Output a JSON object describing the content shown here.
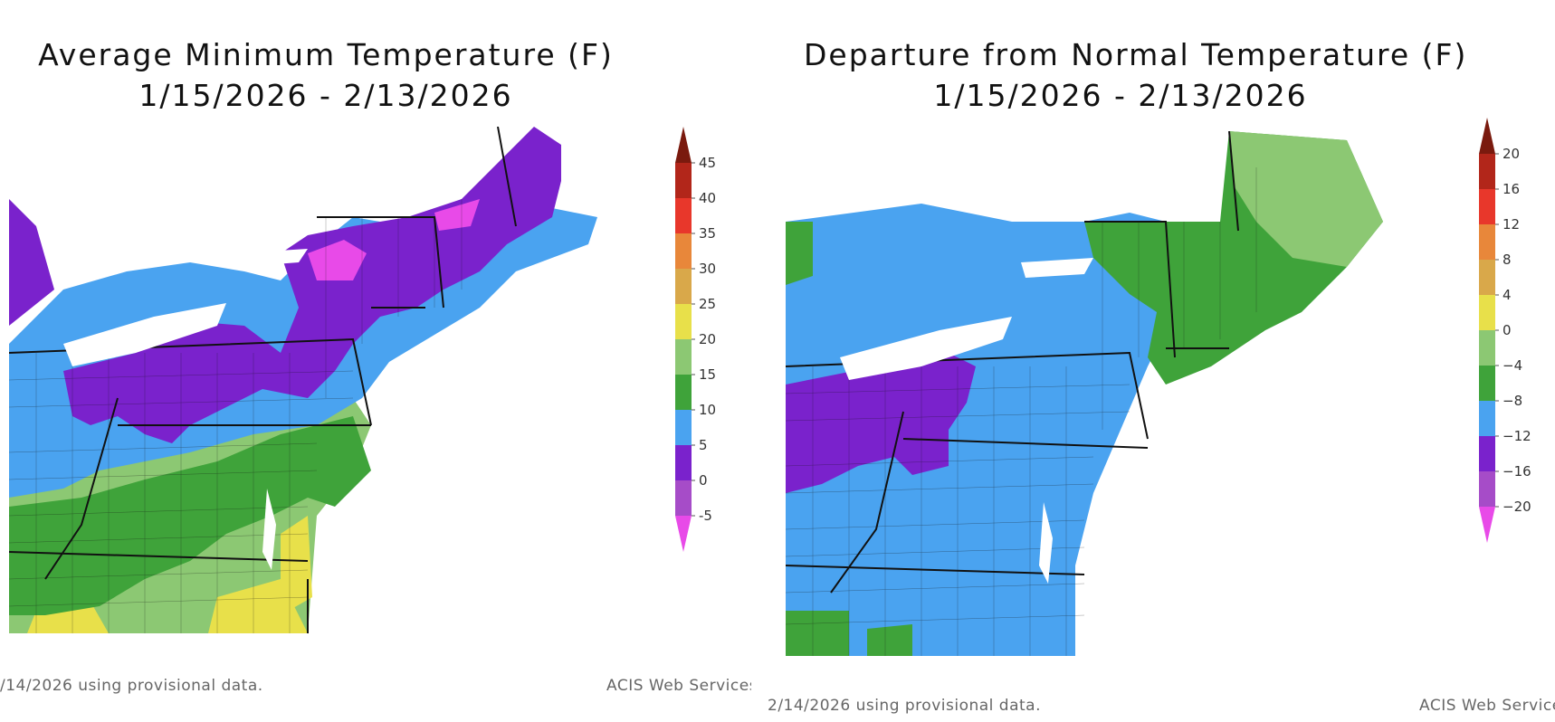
{
  "left": {
    "title_line1": "Average Minimum Temperature (F)",
    "title_line2": "1/15/2026 - 2/13/2026",
    "footer_left": "/14/2026 using provisional data.",
    "footer_right": "ACIS Web Services",
    "legend": {
      "ticks": [
        "45",
        "40",
        "35",
        "30",
        "25",
        "20",
        "15",
        "10",
        "5",
        "0",
        "-5"
      ],
      "colors": [
        "#7a1a0e",
        "#b2261a",
        "#e8372b",
        "#e8873a",
        "#d9a84a",
        "#e8e04a",
        "#8cc873",
        "#3fa33a",
        "#4aa3f0",
        "#7a22cc",
        "#a64cc8",
        "#e84ae8"
      ]
    }
  },
  "right": {
    "title_line1": "Departure from Normal Temperature (F)",
    "title_line2": "1/15/2026 - 2/13/2026",
    "footer_left": "2/14/2026 using provisional data.",
    "footer_right": "ACIS Web Services",
    "legend": {
      "ticks": [
        "20",
        "16",
        "12",
        "8",
        "4",
        "0",
        "−4",
        "−8",
        "−12",
        "−16",
        "−20"
      ],
      "colors": [
        "#7a1a0e",
        "#b2261a",
        "#e8372b",
        "#e8873a",
        "#d9a84a",
        "#e8e04a",
        "#8cc873",
        "#3fa33a",
        "#4aa3f0",
        "#7a22cc",
        "#a64cc8",
        "#e84ae8"
      ]
    }
  }
}
